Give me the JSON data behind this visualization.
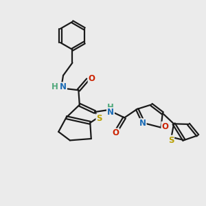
{
  "bg_color": "#ebebeb",
  "line_color": "#1a1a1a",
  "bond_width": 1.6,
  "atom_colors": {
    "N": "#1a6bb5",
    "O": "#cc2200",
    "S": "#b8a000",
    "NH": "#4fa87a",
    "C": "#1a1a1a"
  },
  "font_size_atom": 8.5
}
